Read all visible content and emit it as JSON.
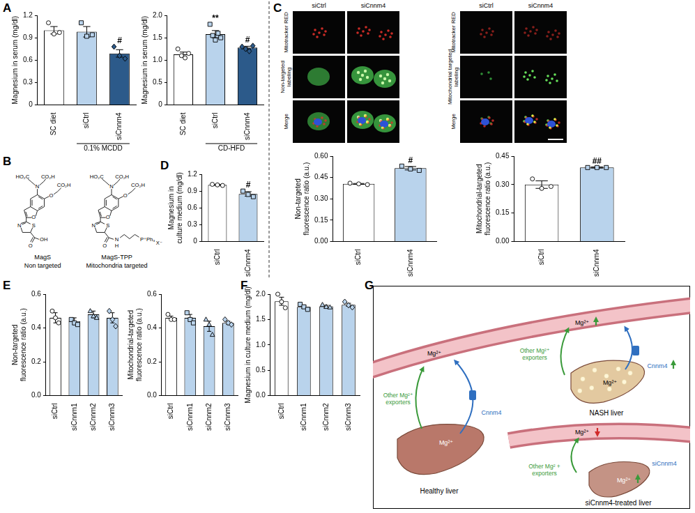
{
  "panel_labels": [
    "A",
    "B",
    "C",
    "D",
    "E",
    "F",
    "G"
  ],
  "chart_data": [
    {
      "type": "bar",
      "categories": [
        "SC diet",
        "siCtrl",
        "siCnnm4"
      ],
      "values": [
        1.0,
        0.98,
        0.69
      ],
      "errors": [
        0.05,
        0.07,
        0.05
      ],
      "points": [
        [
          1.1,
          0.95,
          0.97
        ],
        [
          1.1,
          0.92,
          0.94
        ],
        [
          0.78,
          0.66,
          0.62
        ]
      ],
      "colors": [
        "#ffffff",
        "#b9d3ec",
        "#2c5a8a"
      ],
      "ylabel": "Magnesium in serum (mg/dl)",
      "xlabel": "0.1% MCDD",
      "ylim": [
        0,
        1.2
      ],
      "yticks": [
        0,
        0.3,
        0.6,
        0.9,
        1.2
      ],
      "annotations": [
        null,
        null,
        "#"
      ],
      "grid": false
    },
    {
      "type": "bar",
      "categories": [
        "SC diet",
        "siCtrl",
        "siCnnm4"
      ],
      "values": [
        1.13,
        1.58,
        1.28
      ],
      "errors": [
        0.05,
        0.08,
        0.03
      ],
      "points": [
        [
          1.25,
          1.1,
          1.05,
          1.15
        ],
        [
          1.8,
          1.55,
          1.45,
          1.6,
          1.5
        ],
        [
          1.3,
          1.25,
          1.2,
          1.32
        ]
      ],
      "colors": [
        "#ffffff",
        "#b9d3ec",
        "#2c5a8a"
      ],
      "ylabel": "Magnesium in serum (mg/dl)",
      "xlabel": "CD-HFD",
      "ylim": [
        0,
        2.0
      ],
      "yticks": [
        0,
        0.5,
        {
          "value": 1,
          "label": "1.0"
        },
        1.5,
        {
          "value": 2,
          "label": "2.0"
        }
      ],
      "annotations": [
        null,
        "**",
        "#"
      ],
      "grid": false
    },
    {
      "type": "bar",
      "categories": [
        "siCtrl",
        "siCnnm4"
      ],
      "values": [
        0.405,
        0.515
      ],
      "errors": [
        0.003,
        0.012
      ],
      "points": [
        [
          0.41,
          0.405,
          0.4
        ],
        [
          0.53,
          0.51,
          0.5
        ]
      ],
      "colors": [
        "#ffffff",
        "#b9d3ec"
      ],
      "ylabel": [
        "Non-targeted",
        "fluorescence ratio (a.u.)"
      ],
      "ylim": [
        0,
        0.6
      ],
      "yticks": [
        {
          "value": 0,
          "label": "0.00"
        },
        0.15,
        {
          "value": 0.3,
          "label": "0.30"
        },
        0.45,
        {
          "value": 0.6,
          "label": "0.60"
        }
      ],
      "annotations": [
        null,
        "#"
      ],
      "grid": false
    },
    {
      "type": "bar",
      "categories": [
        "siCtrl",
        "siCnnm4"
      ],
      "values": [
        0.3,
        0.39
      ],
      "errors": [
        0.02,
        0.003
      ],
      "points": [
        [
          0.33,
          0.28,
          0.29
        ],
        [
          0.39,
          0.39,
          0.39
        ]
      ],
      "colors": [
        "#ffffff",
        "#b9d3ec"
      ],
      "ylabel": [
        "Mitochondrial-targeted",
        "fluorescence ratio (a.u.)"
      ],
      "ylim": [
        0,
        0.45
      ],
      "yticks": [
        {
          "value": 0,
          "label": "0.00"
        },
        0.15,
        {
          "value": 0.3,
          "label": "0.30"
        },
        0.45
      ],
      "annotations": [
        null,
        "##"
      ],
      "grid": false
    },
    {
      "type": "bar",
      "categories": [
        "siCtrl",
        "siCnnm4"
      ],
      "values": [
        1.01,
        0.85
      ],
      "errors": [
        0.01,
        0.04
      ],
      "points": [
        [
          1.02,
          1.01,
          1.0
        ],
        [
          0.9,
          0.84,
          0.8
        ]
      ],
      "colors": [
        "#ffffff",
        "#b9d3ec"
      ],
      "ylabel": [
        "Magnesium in",
        "culture medium (mg/dl)"
      ],
      "ylim": [
        0,
        1.2
      ],
      "yticks": [
        0,
        0.3,
        0.6,
        0.9,
        1.2
      ],
      "annotations": [
        null,
        "#"
      ],
      "grid": false
    },
    {
      "type": "bar",
      "categories": [
        "siCtrl",
        "siCnnm1",
        "siCnnm2",
        "siCnnm3"
      ],
      "values": [
        0.46,
        0.44,
        0.48,
        0.46
      ],
      "errors": [
        0.03,
        0.02,
        0.02,
        0.03
      ],
      "points": [
        [
          0.5,
          0.46,
          0.43
        ],
        [
          0.45,
          0.43,
          0.42
        ],
        [
          0.5,
          0.47,
          0.46
        ],
        [
          0.5,
          0.45,
          0.41
        ]
      ],
      "colors": [
        "#ffffff",
        "#b9d3ec",
        "#b9d3ec",
        "#b9d3ec"
      ],
      "ylabel": [
        "Non-targeted",
        "fluorescence ratio (a.u.)"
      ],
      "ylim": [
        0,
        0.6
      ],
      "yticks": [
        {
          "value": 0,
          "label": "0.0"
        },
        0.2,
        0.4,
        0.6
      ],
      "grid": false
    },
    {
      "type": "bar",
      "categories": [
        "siCtrl",
        "siCnnm1",
        "siCnnm2",
        "siCnnm3"
      ],
      "values": [
        0.46,
        0.46,
        0.41,
        0.43
      ],
      "errors": [
        0.01,
        0.02,
        0.03,
        0.01
      ],
      "points": [
        [
          0.48,
          0.45,
          0.45
        ],
        [
          0.49,
          0.45,
          0.43
        ],
        [
          0.45,
          0.42,
          0.36
        ],
        [
          0.45,
          0.43,
          0.42
        ]
      ],
      "colors": [
        "#ffffff",
        "#b9d3ec",
        "#b9d3ec",
        "#b9d3ec"
      ],
      "ylabel": [
        "Mitochondrial-targeted",
        "fluorescence ratio (a.u.)"
      ],
      "ylim": [
        0,
        0.6
      ],
      "yticks": [
        {
          "value": 0,
          "label": "0.0"
        },
        0.2,
        0.4,
        0.6
      ],
      "grid": false
    },
    {
      "type": "bar",
      "categories": [
        "siCtrl",
        "siCnnm1",
        "siCnnm2",
        "siCnnm3"
      ],
      "values": [
        1.86,
        1.75,
        1.76,
        1.79
      ],
      "errors": [
        0.08,
        0.03,
        0.02,
        0.03
      ],
      "points": [
        [
          2.0,
          1.85,
          1.73
        ],
        [
          1.8,
          1.75,
          1.7
        ],
        [
          1.79,
          1.75,
          1.74
        ],
        [
          1.85,
          1.78,
          1.74
        ]
      ],
      "colors": [
        "#ffffff",
        "#b9d3ec",
        "#b9d3ec",
        "#b9d3ec"
      ],
      "ylabel": "Magnesium in culture medium (mg/dl)",
      "ylim": [
        0,
        2.0
      ],
      "yticks": [
        {
          "value": 0,
          "label": "0.0"
        },
        0.5,
        {
          "value": 1,
          "label": "1.0"
        },
        1.5,
        {
          "value": 2,
          "label": "2.0"
        }
      ],
      "grid": false
    }
  ],
  "structures": [
    {
      "name": "MagS",
      "subtitle": "Non targeted",
      "atoms": [
        "HO₂C",
        "CO₂H",
        "N",
        "O",
        "CO₂H",
        "O",
        "S",
        "N",
        "O",
        "OH"
      ]
    },
    {
      "name": "MagS-TPP",
      "subtitle": "Mitochondria targeted",
      "atoms": [
        "HO₂C",
        "CO₂H",
        "N",
        "O",
        "CO₂H",
        "O",
        "S",
        "N",
        "O",
        "N",
        "H",
        "P⁺Ph₃",
        "X⁻"
      ]
    }
  ],
  "micrographs": [
    {
      "columns": [
        "siCtrl",
        "siCnnm4"
      ],
      "rows": [
        "Mitotracker RED",
        "Non-targeted labeling",
        "Merge"
      ]
    },
    {
      "columns": [
        "siCtrl",
        "siCnnm4"
      ],
      "rows": [
        "Mitotracker RED",
        "Mitochondrial targeted labeling",
        "Merge"
      ]
    }
  ],
  "diagram": {
    "livers": [
      {
        "label": "Healthy liver",
        "gene": "Cnnm4",
        "exporters": "Other Mg²⁺ exporters",
        "ion_labels": [
          "Mg²⁺",
          "Mg²⁺"
        ]
      },
      {
        "label": "NASH liver",
        "gene": "Cnnm4",
        "exporters": "Other Mg²⁺ exporters",
        "ion_labels": [
          "Mg²⁺",
          "Mg²⁺"
        ]
      },
      {
        "label": "siCnnm4-treated liver",
        "gene": "siCnnm4",
        "exporters": "Other Mg² + exporters",
        "ion_labels": [
          "Mg²⁺",
          "Mg²⁺"
        ]
      }
    ]
  }
}
